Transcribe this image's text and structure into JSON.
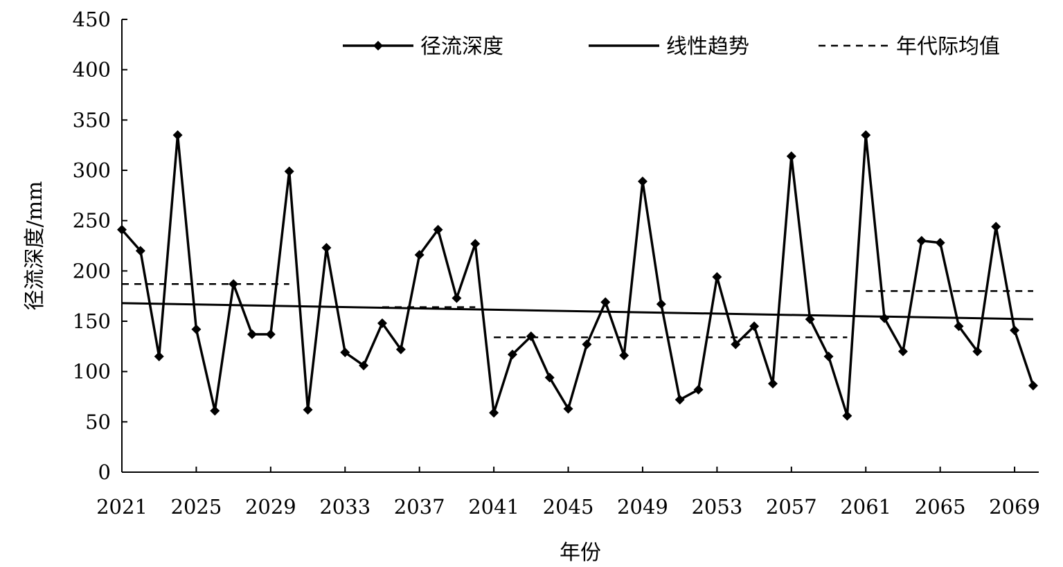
{
  "chart_data": {
    "type": "line",
    "xlabel": "年份",
    "ylabel": "径流深度/mm",
    "ylim": [
      0,
      450
    ],
    "yticks": [
      0,
      50,
      100,
      150,
      200,
      250,
      300,
      350,
      400,
      450
    ],
    "xlim": [
      2021,
      2070
    ],
    "xticks": [
      2021,
      2025,
      2029,
      2033,
      2037,
      2041,
      2045,
      2049,
      2053,
      2057,
      2061,
      2065,
      2069
    ],
    "grid": false,
    "legend_position": "top",
    "series": [
      {
        "name": "径流深度",
        "style": "solid-with-diamond-markers",
        "x": [
          2021,
          2022,
          2023,
          2024,
          2025,
          2026,
          2027,
          2028,
          2029,
          2030,
          2031,
          2032,
          2033,
          2034,
          2035,
          2036,
          2037,
          2038,
          2039,
          2040,
          2041,
          2042,
          2043,
          2044,
          2045,
          2046,
          2047,
          2048,
          2049,
          2050,
          2051,
          2052,
          2053,
          2054,
          2055,
          2056,
          2057,
          2058,
          2059,
          2060,
          2061,
          2062,
          2063,
          2064,
          2065,
          2066,
          2067,
          2068,
          2069,
          2070
        ],
        "values": [
          241,
          220,
          115,
          335,
          142,
          61,
          187,
          137,
          137,
          299,
          62,
          223,
          119,
          106,
          148,
          122,
          216,
          241,
          173,
          227,
          59,
          117,
          135,
          94,
          63,
          127,
          169,
          116,
          289,
          167,
          72,
          82,
          194,
          127,
          145,
          88,
          314,
          152,
          115,
          56,
          335,
          153,
          120,
          230,
          228,
          145,
          120,
          244,
          141,
          86
        ]
      },
      {
        "name": "线性趋势",
        "style": "solid",
        "x": [
          2021,
          2070
        ],
        "values": [
          168,
          152
        ]
      },
      {
        "name": "年代际均值",
        "style": "dashed",
        "segments": [
          {
            "x": [
              2021,
              2030
            ],
            "value": 187
          },
          {
            "x": [
              2035,
              2040
            ],
            "value": 164
          },
          {
            "x": [
              2041,
              2060
            ],
            "value": 134
          },
          {
            "x": [
              2061,
              2070
            ],
            "value": 180
          }
        ]
      }
    ]
  }
}
